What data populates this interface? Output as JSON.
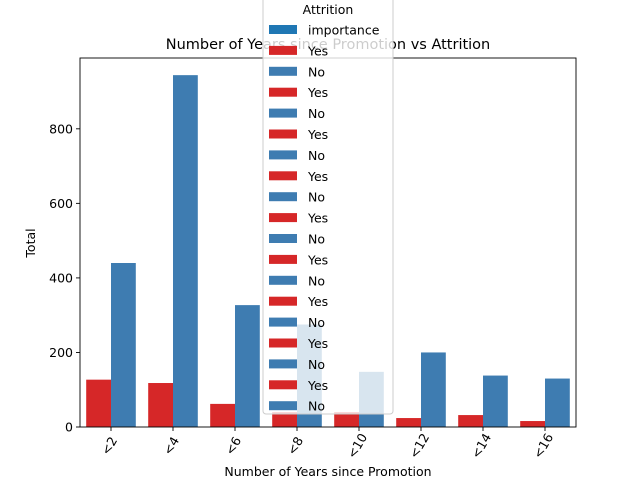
{
  "chart_data": {
    "type": "bar",
    "title": "Number of Years since Promotion vs Attrition",
    "xlabel": "Number of Years since Promotion",
    "ylabel": "Total",
    "categories": [
      "<2",
      "<4",
      "<6",
      "<8",
      "<10",
      "<12",
      "<14",
      "<16"
    ],
    "yticks": [
      0,
      200,
      400,
      600,
      800
    ],
    "ylim": [
      0,
      990
    ],
    "series": [
      {
        "name": "Yes",
        "color": "#d62728",
        "values": [
          127,
          118,
          62,
          40,
          40,
          24,
          32,
          16
        ]
      },
      {
        "name": "No",
        "color": "#3e7cb1",
        "values": [
          440,
          944,
          327,
          275,
          148,
          200,
          138,
          130
        ]
      }
    ],
    "legend": {
      "title": "Attrition",
      "placement": "top-center",
      "entries": [
        {
          "label": "importance",
          "color": "#1f77b4"
        },
        {
          "label": "Yes",
          "color": "#d62728"
        },
        {
          "label": "No",
          "color": "#3e7cb1"
        },
        {
          "label": "Yes",
          "color": "#d62728"
        },
        {
          "label": "No",
          "color": "#3e7cb1"
        },
        {
          "label": "Yes",
          "color": "#d62728"
        },
        {
          "label": "No",
          "color": "#3e7cb1"
        },
        {
          "label": "Yes",
          "color": "#d62728"
        },
        {
          "label": "No",
          "color": "#3e7cb1"
        },
        {
          "label": "Yes",
          "color": "#d62728"
        },
        {
          "label": "No",
          "color": "#3e7cb1"
        },
        {
          "label": "Yes",
          "color": "#d62728"
        },
        {
          "label": "No",
          "color": "#3e7cb1"
        },
        {
          "label": "Yes",
          "color": "#d62728"
        },
        {
          "label": "No",
          "color": "#3e7cb1"
        },
        {
          "label": "Yes",
          "color": "#d62728"
        },
        {
          "label": "No",
          "color": "#3e7cb1"
        },
        {
          "label": "Yes",
          "color": "#d62728"
        },
        {
          "label": "No",
          "color": "#3e7cb1"
        }
      ]
    }
  }
}
